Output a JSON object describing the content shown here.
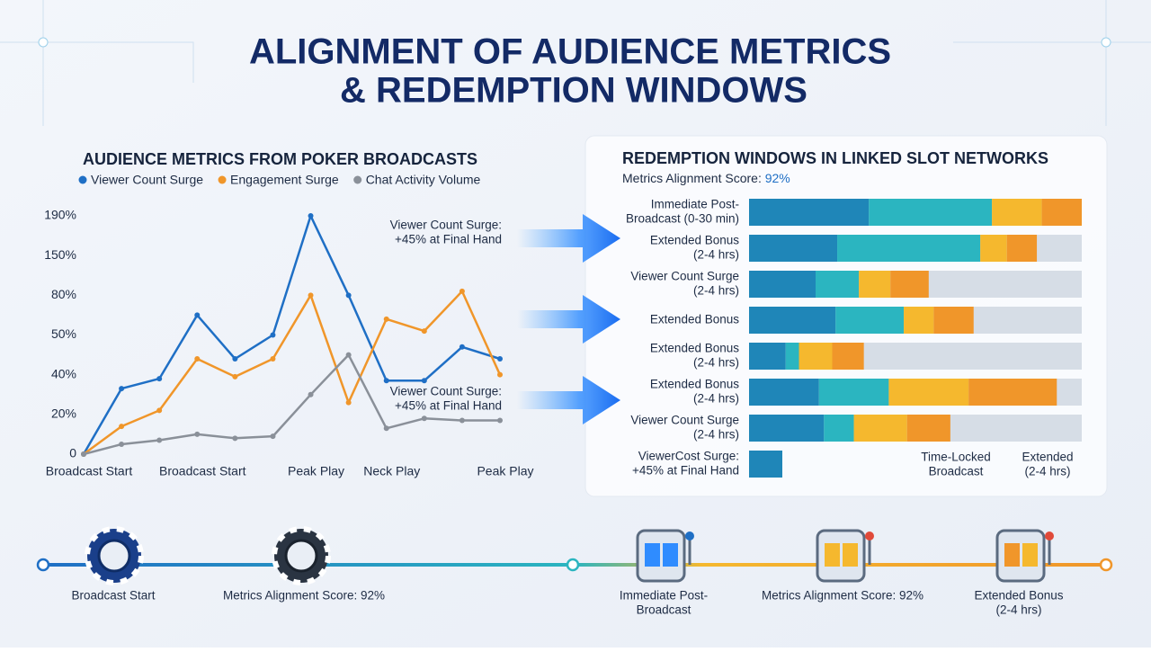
{
  "title": [
    "ALIGNMENT OF AUDIENCE METRICS",
    "& REDEMPTION WINDOWS"
  ],
  "chart_data": [
    {
      "type": "line",
      "title": "AUDIENCE METRICS FROM POKER BROADCASTS",
      "categories": [
        "Broadcast Start",
        null,
        null,
        "Broadcast Start",
        null,
        null,
        "Peak Play",
        null,
        "Neck Play",
        null,
        null,
        "Peak Play"
      ],
      "series": [
        {
          "name": "Viewer Count Surge",
          "color": "#1f6fc5",
          "values": [
            0,
            33,
            38,
            65,
            44,
            50,
            190,
            80,
            37,
            37,
            47,
            44
          ]
        },
        {
          "name": "Engagement Surge",
          "color": "#f0962a",
          "values": [
            0,
            14,
            22,
            44,
            39,
            44,
            80,
            26,
            62,
            53,
            87,
            40
          ]
        },
        {
          "name": "Chat Activity Volume",
          "color": "#8a9099",
          "values": [
            0,
            5,
            7,
            10,
            8,
            9,
            30,
            45,
            13,
            18,
            17,
            17
          ]
        }
      ],
      "ylim": [
        0,
        190
      ],
      "yticks": [
        {
          "value": 0,
          "label": "0"
        },
        {
          "value": 20,
          "label": "20%"
        },
        {
          "value": 40,
          "label": "40%"
        },
        {
          "value": 50,
          "label": "50%"
        },
        {
          "value": 80,
          "label": "80%"
        },
        {
          "value": 150,
          "label": "150%"
        },
        {
          "value": 190,
          "label": "190%"
        }
      ],
      "annotations": [
        {
          "lines": [
            "Viewer Count Surge:",
            "+45% at Final Hand"
          ],
          "color": "#1f6fc5"
        },
        {
          "lines": [
            "Viewer Count Surge:",
            "+45% at Final Hand"
          ],
          "color": "#f0962a"
        }
      ]
    },
    {
      "type": "bar",
      "orientation": "horizontal",
      "stacked": true,
      "title": "REDEMPTION WINDOWS IN LINKED SLOT NETWORKS",
      "subtitle": [
        "Metrics Alignment Score:",
        "92%"
      ],
      "categories": [
        [
          "Immediate Post-",
          "Broadcast (0-30 min)"
        ],
        [
          "Extended Bonus",
          "(2-4 hrs)"
        ],
        [
          "Viewer Count Surge",
          "(2-4 hrs)"
        ],
        [
          "Extended Bonus"
        ],
        [
          "Extended Bonus",
          "(2-4 hrs)"
        ],
        [
          "Extended Bonus",
          "(2-4 hrs)"
        ],
        [
          "Viewer Count Surge",
          "(2-4 hrs)"
        ],
        [
          "ViewerCost Surge:",
          "+45% at Final Hand"
        ]
      ],
      "xlim": [
        0,
        100
      ],
      "series": [
        {
          "color": "#1f86b8",
          "values": [
            36,
            26.5,
            20,
            26,
            11,
            21,
            22.5,
            10
          ]
        },
        {
          "color": "#2bb5c0",
          "values": [
            37,
            43,
            13,
            20.5,
            4,
            21,
            9,
            0
          ]
        },
        {
          "color": "#f5b82e",
          "values": [
            15,
            8,
            9.5,
            9,
            10,
            24,
            16,
            0
          ]
        },
        {
          "color": "#f0962a",
          "values": [
            12,
            9,
            11.5,
            12,
            9.5,
            26.5,
            13,
            0
          ]
        }
      ],
      "annotations": [
        [
          "Time-Locked",
          "Broadcast"
        ],
        [
          "Extended",
          "(2-4 hrs)"
        ]
      ]
    }
  ],
  "timeline": [
    [
      "Broadcast Start"
    ],
    [
      "Metrics Alignment Score: 92%"
    ],
    [
      "Immediate Post-",
      "Broadcast"
    ],
    [
      "Metrics Alignment Score: 92%"
    ],
    [
      "Extended Bonus",
      "(2-4 hrs)"
    ]
  ]
}
